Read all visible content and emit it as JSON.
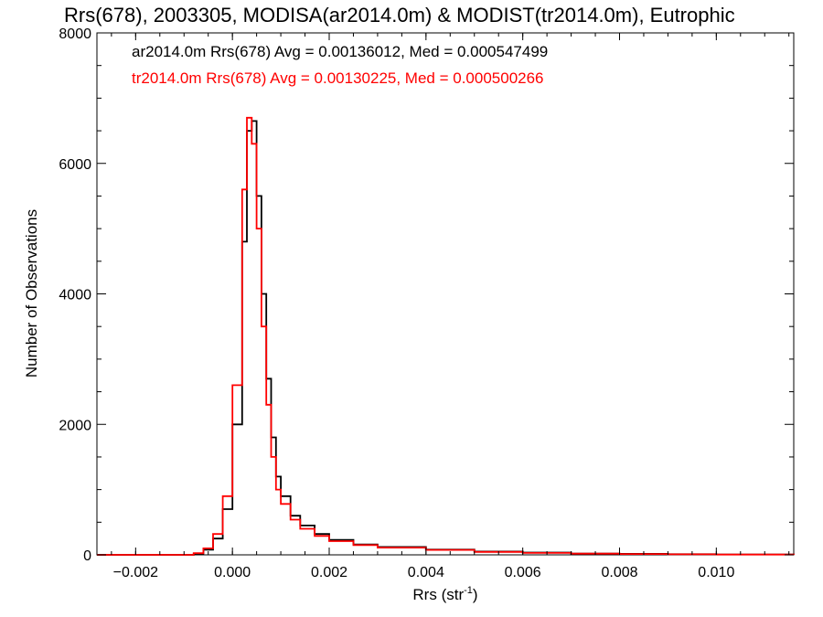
{
  "chart_data": {
    "type": "line",
    "title": "Rrs(678), 2003305, MODISA(ar2014.0m) & MODIST(tr2014.0m), Eutrophic",
    "xlabel_main": "Rrs (str",
    "xlabel_sup": "-1",
    "xlabel_close": ")",
    "ylabel": "Number of Observations",
    "xlim": [
      -0.0028,
      0.0116
    ],
    "ylim": [
      0,
      8000
    ],
    "x_ticks": [
      -0.002,
      0.0,
      0.002,
      0.004,
      0.006,
      0.008,
      0.01
    ],
    "x_tick_labels": [
      "−0.002",
      "0.000",
      "0.002",
      "0.004",
      "0.006",
      "0.008",
      "0.010"
    ],
    "y_ticks": [
      0,
      2000,
      4000,
      6000,
      8000
    ],
    "y_tick_labels": [
      "0",
      "2000",
      "4000",
      "6000",
      "8000"
    ],
    "legend": [
      {
        "text": "ar2014.0m Rrs(678) Avg = 0.00136012, Med = 0.000547499",
        "color": "#000000"
      },
      {
        "text": "tr2014.0m Rrs(678) Avg = 0.00130225, Med = 0.000500266",
        "color": "#ff0000"
      }
    ],
    "series": [
      {
        "name": "ar2014.0m",
        "color": "#000000",
        "style": "step",
        "x": [
          -0.0028,
          -0.001,
          -0.0008,
          -0.0006,
          -0.0004,
          -0.0002,
          0.0,
          0.0002,
          0.0003,
          0.0004,
          0.0005,
          0.0006,
          0.0007,
          0.0008,
          0.0009,
          0.001,
          0.0012,
          0.0014,
          0.0017,
          0.002,
          0.0025,
          0.003,
          0.004,
          0.005,
          0.006,
          0.007,
          0.008,
          0.009,
          0.01,
          0.0116
        ],
        "y": [
          0,
          0,
          20,
          80,
          250,
          700,
          2000,
          4800,
          6500,
          6650,
          5500,
          4000,
          2700,
          1800,
          1200,
          900,
          600,
          450,
          320,
          230,
          160,
          120,
          80,
          50,
          35,
          20,
          15,
          10,
          5,
          0
        ]
      },
      {
        "name": "tr2014.0m",
        "color": "#ff0000",
        "style": "step",
        "x": [
          -0.0028,
          -0.001,
          -0.0008,
          -0.0006,
          -0.0004,
          -0.0002,
          0.0,
          0.0002,
          0.0003,
          0.0004,
          0.0005,
          0.0006,
          0.0007,
          0.0008,
          0.0009,
          0.001,
          0.0012,
          0.0014,
          0.0017,
          0.002,
          0.0025,
          0.003,
          0.004,
          0.005,
          0.006,
          0.007,
          0.008,
          0.009,
          0.01,
          0.0116
        ],
        "y": [
          0,
          0,
          25,
          100,
          320,
          900,
          2600,
          5600,
          6700,
          6300,
          5000,
          3500,
          2300,
          1500,
          1000,
          780,
          540,
          400,
          290,
          210,
          150,
          110,
          75,
          45,
          30,
          18,
          12,
          8,
          4,
          0
        ]
      }
    ],
    "grid": false,
    "legend_position": "top-left"
  }
}
